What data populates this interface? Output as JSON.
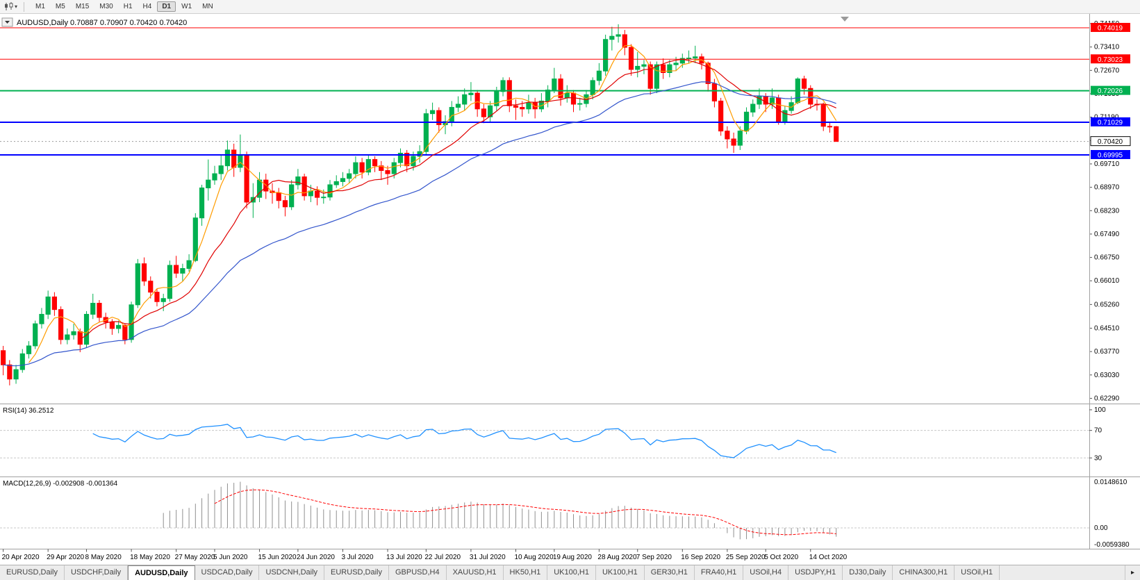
{
  "toolbar": {
    "timeframes": [
      "M1",
      "M5",
      "M15",
      "M30",
      "H1",
      "H4",
      "D1",
      "W1",
      "MN"
    ],
    "active_timeframe": "D1",
    "chart_type_caret": "▾"
  },
  "chart": {
    "symbol_label": "AUDUSD,Daily",
    "ohlc_text": "0.70887 0.70907 0.70420 0.70420"
  },
  "chart_data": {
    "type": "candlestick",
    "symbol": "AUDUSD",
    "timeframe": "Daily",
    "title_symbol": "AUDUSD,Daily",
    "title_ohlc": "0.70887 0.70907 0.70420 0.70420",
    "y_range": [
      0.6219,
      0.7437
    ],
    "price_axis_ticks": [
      "0.74150",
      "0.73410",
      "0.72670",
      "0.71930",
      "0.71190",
      "0.70450",
      "0.69710",
      "0.68970",
      "0.68230",
      "0.67490",
      "0.66750",
      "0.66010",
      "0.65260",
      "0.64510",
      "0.63770",
      "0.63030",
      "0.62290"
    ],
    "x_labels": [
      "20 Apr 2020",
      "29 Apr 2020",
      "8 May 2020",
      "18 May 2020",
      "27 May 2020",
      "5 Jun 2020",
      "15 Jun 2020",
      "24 Jun 2020",
      "3 Jul 2020",
      "13 Jul 2020",
      "22 Jul 2020",
      "31 Jul 2020",
      "10 Aug 2020",
      "19 Aug 2020",
      "28 Aug 2020",
      "7 Sep 2020",
      "16 Sep 2020",
      "25 Sep 2020",
      "5 Oct 2020",
      "14 Oct 2020"
    ],
    "x_label_slots": [
      0,
      7,
      13,
      20,
      27,
      33,
      40,
      46,
      53,
      60,
      66,
      73,
      80,
      86,
      93,
      99,
      106,
      113,
      119,
      126
    ],
    "colors": {
      "up": "#00b050",
      "down": "#ff0000",
      "ma_fast": "#ff9c00",
      "ma_mid": "#e00000",
      "ma_slow": "#3355cc",
      "rsi_line": "#1e90ff",
      "macd_bar": "#8f8f8f",
      "macd_signal": "#ff0000",
      "grid": "#c8c8c8",
      "axis_text": "#000000"
    },
    "h_lines": [
      {
        "value": 0.74019,
        "label": "0.74019",
        "color": "#ff0000",
        "width": 1
      },
      {
        "value": 0.73023,
        "label": "0.73023",
        "color": "#ff0000",
        "width": 1
      },
      {
        "value": 0.72026,
        "label": "0.72026",
        "color": "#00b050",
        "width": 2
      },
      {
        "value": 0.71029,
        "label": "0.71029",
        "color": "#0000ff",
        "width": 2
      },
      {
        "value": 0.69995,
        "label": "0.69995",
        "color": "#0000ff",
        "width": 2
      }
    ],
    "current_price": {
      "value": 0.7042,
      "label": "0.70420"
    },
    "moving_averages": [
      {
        "period": 5,
        "method": "sma",
        "color": "#ff9c00"
      },
      {
        "period": 13,
        "method": "sma",
        "color": "#e00000"
      },
      {
        "period": 34,
        "method": "ema",
        "color": "#3355cc"
      }
    ],
    "rsi": {
      "title": "RSI(14) 36.2512",
      "period": 14,
      "levels": [
        70,
        30
      ],
      "axis_labels": [
        "100",
        "70",
        "30"
      ],
      "color": "#1e90ff"
    },
    "macd": {
      "title": "MACD(12,26,9) -0.002908 -0.001364",
      "fast": 12,
      "slow": 26,
      "signal": 9,
      "axis_labels": [
        "0.0148610",
        "0.00",
        "-0.0059380"
      ]
    },
    "candles": [
      [
        0.638,
        0.6395,
        0.6302,
        0.6335
      ],
      [
        0.6335,
        0.635,
        0.627,
        0.629
      ],
      [
        0.629,
        0.6335,
        0.6275,
        0.632
      ],
      [
        0.632,
        0.6385,
        0.631,
        0.637
      ],
      [
        0.637,
        0.641,
        0.6355,
        0.6395
      ],
      [
        0.6395,
        0.6475,
        0.6385,
        0.6465
      ],
      [
        0.6465,
        0.6515,
        0.645,
        0.6495
      ],
      [
        0.6495,
        0.657,
        0.648,
        0.655
      ],
      [
        0.655,
        0.6565,
        0.649,
        0.651
      ],
      [
        0.651,
        0.652,
        0.64,
        0.6415
      ],
      [
        0.6415,
        0.645,
        0.64,
        0.643
      ],
      [
        0.643,
        0.6465,
        0.6415,
        0.644
      ],
      [
        0.644,
        0.645,
        0.6375,
        0.64
      ],
      [
        0.64,
        0.6505,
        0.639,
        0.6495
      ],
      [
        0.6495,
        0.656,
        0.648,
        0.653
      ],
      [
        0.653,
        0.654,
        0.647,
        0.6485
      ],
      [
        0.6485,
        0.65,
        0.645,
        0.647
      ],
      [
        0.647,
        0.648,
        0.643,
        0.645
      ],
      [
        0.645,
        0.6475,
        0.6435,
        0.646
      ],
      [
        0.646,
        0.6465,
        0.64,
        0.6415
      ],
      [
        0.6415,
        0.6535,
        0.6405,
        0.6525
      ],
      [
        0.6525,
        0.667,
        0.6515,
        0.6655
      ],
      [
        0.6655,
        0.6675,
        0.6585,
        0.66
      ],
      [
        0.66,
        0.6615,
        0.6545,
        0.6565
      ],
      [
        0.6565,
        0.6575,
        0.652,
        0.6535
      ],
      [
        0.6535,
        0.656,
        0.6505,
        0.6545
      ],
      [
        0.6545,
        0.6665,
        0.6535,
        0.665
      ],
      [
        0.665,
        0.668,
        0.661,
        0.6625
      ],
      [
        0.6625,
        0.6655,
        0.66,
        0.664
      ],
      [
        0.664,
        0.6685,
        0.663,
        0.6665
      ],
      [
        0.6665,
        0.6815,
        0.666,
        0.68
      ],
      [
        0.68,
        0.6905,
        0.6775,
        0.6895
      ],
      [
        0.6895,
        0.6985,
        0.6855,
        0.692
      ],
      [
        0.692,
        0.6965,
        0.6905,
        0.694
      ],
      [
        0.694,
        0.7,
        0.692,
        0.6965
      ],
      [
        0.6965,
        0.7045,
        0.695,
        0.7015
      ],
      [
        0.7015,
        0.7035,
        0.693,
        0.696
      ],
      [
        0.696,
        0.7064,
        0.6945,
        0.7
      ],
      [
        0.7,
        0.701,
        0.683,
        0.685
      ],
      [
        0.685,
        0.691,
        0.68,
        0.6865
      ],
      [
        0.6865,
        0.6945,
        0.685,
        0.692
      ],
      [
        0.692,
        0.694,
        0.686,
        0.6885
      ],
      [
        0.6885,
        0.691,
        0.6845,
        0.688
      ],
      [
        0.688,
        0.6895,
        0.683,
        0.6855
      ],
      [
        0.6855,
        0.687,
        0.6805,
        0.6835
      ],
      [
        0.6835,
        0.692,
        0.6825,
        0.6905
      ],
      [
        0.6905,
        0.6955,
        0.689,
        0.693
      ],
      [
        0.693,
        0.694,
        0.6855,
        0.687
      ],
      [
        0.687,
        0.6905,
        0.685,
        0.6885
      ],
      [
        0.6885,
        0.69,
        0.684,
        0.6865
      ],
      [
        0.6865,
        0.689,
        0.6845,
        0.6866
      ],
      [
        0.6866,
        0.692,
        0.6855,
        0.6905
      ],
      [
        0.6905,
        0.6935,
        0.6895,
        0.6915
      ],
      [
        0.6915,
        0.6945,
        0.69,
        0.6925
      ],
      [
        0.6925,
        0.6955,
        0.691,
        0.694
      ],
      [
        0.694,
        0.6995,
        0.6925,
        0.6975
      ],
      [
        0.6975,
        0.699,
        0.6925,
        0.6945
      ],
      [
        0.6945,
        0.7,
        0.6935,
        0.6985
      ],
      [
        0.6985,
        0.6995,
        0.6945,
        0.6965
      ],
      [
        0.6965,
        0.698,
        0.692,
        0.695
      ],
      [
        0.695,
        0.6965,
        0.6905,
        0.694
      ],
      [
        0.694,
        0.699,
        0.6925,
        0.6975
      ],
      [
        0.6975,
        0.702,
        0.696,
        0.7005
      ],
      [
        0.7005,
        0.7015,
        0.6945,
        0.6965
      ],
      [
        0.6965,
        0.701,
        0.695,
        0.6995
      ],
      [
        0.6995,
        0.703,
        0.6975,
        0.701
      ],
      [
        0.701,
        0.7145,
        0.7,
        0.713
      ],
      [
        0.713,
        0.7165,
        0.711,
        0.714
      ],
      [
        0.714,
        0.715,
        0.707,
        0.7095
      ],
      [
        0.7095,
        0.7125,
        0.7065,
        0.7105
      ],
      [
        0.7105,
        0.717,
        0.709,
        0.715
      ],
      [
        0.715,
        0.7185,
        0.7135,
        0.716
      ],
      [
        0.716,
        0.721,
        0.714,
        0.719
      ],
      [
        0.719,
        0.723,
        0.717,
        0.7195
      ],
      [
        0.7195,
        0.7205,
        0.712,
        0.7145
      ],
      [
        0.7145,
        0.716,
        0.71,
        0.712
      ],
      [
        0.712,
        0.717,
        0.7105,
        0.7155
      ],
      [
        0.7155,
        0.7215,
        0.714,
        0.72
      ],
      [
        0.72,
        0.7245,
        0.7185,
        0.7235
      ],
      [
        0.7235,
        0.7245,
        0.7135,
        0.7155
      ],
      [
        0.7155,
        0.7175,
        0.711,
        0.715
      ],
      [
        0.715,
        0.717,
        0.712,
        0.7145
      ],
      [
        0.7145,
        0.719,
        0.713,
        0.7165
      ],
      [
        0.7165,
        0.718,
        0.7115,
        0.7145
      ],
      [
        0.7145,
        0.7195,
        0.7135,
        0.717
      ],
      [
        0.717,
        0.722,
        0.715,
        0.7205
      ],
      [
        0.7205,
        0.7275,
        0.7195,
        0.724
      ],
      [
        0.724,
        0.7255,
        0.7155,
        0.718
      ],
      [
        0.718,
        0.722,
        0.7165,
        0.7195
      ],
      [
        0.7195,
        0.7205,
        0.7135,
        0.716
      ],
      [
        0.716,
        0.718,
        0.714,
        0.7162
      ],
      [
        0.7162,
        0.7205,
        0.715,
        0.719
      ],
      [
        0.719,
        0.7245,
        0.7175,
        0.7235
      ],
      [
        0.7235,
        0.729,
        0.722,
        0.7265
      ],
      [
        0.7265,
        0.738,
        0.725,
        0.7365
      ],
      [
        0.7365,
        0.7405,
        0.733,
        0.7375
      ],
      [
        0.7375,
        0.7413,
        0.7355,
        0.738
      ],
      [
        0.738,
        0.7395,
        0.7315,
        0.734
      ],
      [
        0.734,
        0.735,
        0.725,
        0.727
      ],
      [
        0.727,
        0.7325,
        0.7245,
        0.728
      ],
      [
        0.728,
        0.73,
        0.7255,
        0.7285
      ],
      [
        0.7285,
        0.7295,
        0.719,
        0.721
      ],
      [
        0.721,
        0.7295,
        0.7195,
        0.7285
      ],
      [
        0.7285,
        0.7305,
        0.724,
        0.726
      ],
      [
        0.726,
        0.73,
        0.7245,
        0.7285
      ],
      [
        0.7285,
        0.731,
        0.7265,
        0.729
      ],
      [
        0.729,
        0.732,
        0.7275,
        0.7305
      ],
      [
        0.7305,
        0.733,
        0.729,
        0.7306
      ],
      [
        0.7306,
        0.7345,
        0.729,
        0.731
      ],
      [
        0.731,
        0.732,
        0.727,
        0.729
      ],
      [
        0.729,
        0.7295,
        0.72,
        0.7225
      ],
      [
        0.7225,
        0.724,
        0.715,
        0.717
      ],
      [
        0.717,
        0.718,
        0.706,
        0.7075
      ],
      [
        0.7075,
        0.709,
        0.702,
        0.705
      ],
      [
        0.705,
        0.707,
        0.7006,
        0.703
      ],
      [
        0.703,
        0.709,
        0.7015,
        0.7075
      ],
      [
        0.7075,
        0.715,
        0.7065,
        0.7135
      ],
      [
        0.7135,
        0.7175,
        0.712,
        0.716
      ],
      [
        0.716,
        0.721,
        0.7145,
        0.7185
      ],
      [
        0.7185,
        0.7195,
        0.7135,
        0.716
      ],
      [
        0.716,
        0.721,
        0.7145,
        0.718
      ],
      [
        0.718,
        0.719,
        0.7095,
        0.7105
      ],
      [
        0.7105,
        0.7155,
        0.7095,
        0.714
      ],
      [
        0.714,
        0.7185,
        0.713,
        0.7165
      ],
      [
        0.7165,
        0.7245,
        0.716,
        0.724
      ],
      [
        0.724,
        0.725,
        0.719,
        0.721
      ],
      [
        0.721,
        0.722,
        0.7145,
        0.716
      ],
      [
        0.716,
        0.7175,
        0.714,
        0.7158
      ],
      [
        0.7158,
        0.7165,
        0.7075,
        0.709
      ],
      [
        0.709,
        0.7105,
        0.707,
        0.7089
      ],
      [
        0.7089,
        0.7091,
        0.7042,
        0.7042
      ]
    ]
  },
  "tabs": {
    "items": [
      "EURUSD,Daily",
      "USDCHF,Daily",
      "AUDUSD,Daily",
      "USDCAD,Daily",
      "USDCNH,Daily",
      "EURUSD,Daily",
      "GBPUSD,H4",
      "XAUUSD,H1",
      "HK50,H1",
      "UK100,H1",
      "UK100,H1",
      "GER30,H1",
      "FRA40,H1",
      "USOil,H4",
      "USDJPY,H1",
      "DJ30,Daily",
      "CHINA300,H1",
      "USOil,H1"
    ],
    "active_index": 2,
    "scroll_icon": "▸"
  }
}
